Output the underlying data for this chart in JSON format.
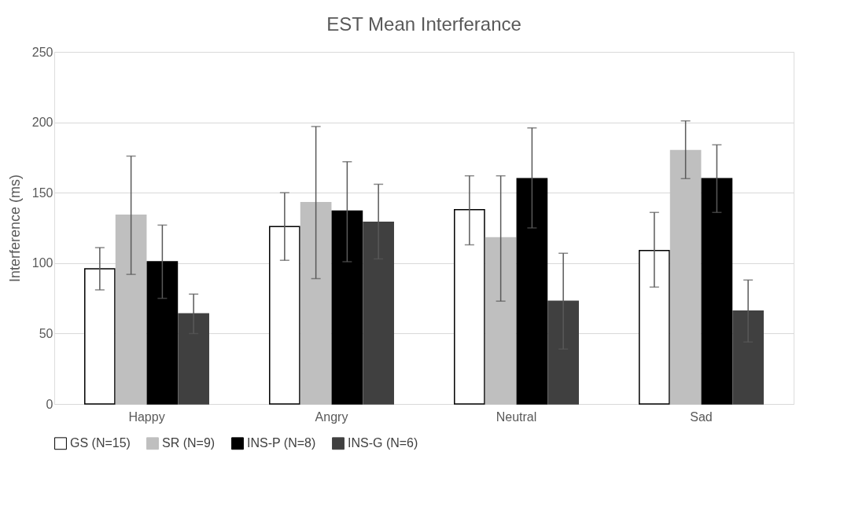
{
  "chart_data": {
    "type": "bar",
    "title": "EST Mean Interferance",
    "ylabel": "Interference (ms)",
    "categories": [
      "Happy",
      "Angry",
      "Neutral",
      "Sad"
    ],
    "series": [
      {
        "name": "GS (N=15)",
        "color": "#ffffff",
        "values": [
          96,
          126,
          138,
          109
        ],
        "errors": [
          [
            81,
            111
          ],
          [
            102,
            150
          ],
          [
            113,
            162
          ],
          [
            83,
            136
          ]
        ]
      },
      {
        "name": "SR (N=9)",
        "color": "#bfbfbf",
        "values": [
          134,
          143,
          118,
          180
        ],
        "errors": [
          [
            92,
            176
          ],
          [
            89,
            197
          ],
          [
            73,
            162
          ],
          [
            160,
            201
          ]
        ]
      },
      {
        "name": "INS-P (N=8)",
        "color": "#000000",
        "values": [
          101,
          137,
          160,
          160
        ],
        "errors": [
          [
            75,
            127
          ],
          [
            101,
            172
          ],
          [
            125,
            196
          ],
          [
            136,
            184
          ]
        ]
      },
      {
        "name": "INS-G (N=6)",
        "color": "#404040",
        "values": [
          64,
          129,
          73,
          66
        ],
        "errors": [
          [
            50,
            78
          ],
          [
            103,
            156
          ],
          [
            39,
            107
          ],
          [
            44,
            88
          ]
        ]
      }
    ],
    "ylim": [
      0,
      250
    ],
    "yticks": [
      0,
      50,
      100,
      150,
      200,
      250
    ],
    "grid": "y",
    "legend": "bottom"
  }
}
